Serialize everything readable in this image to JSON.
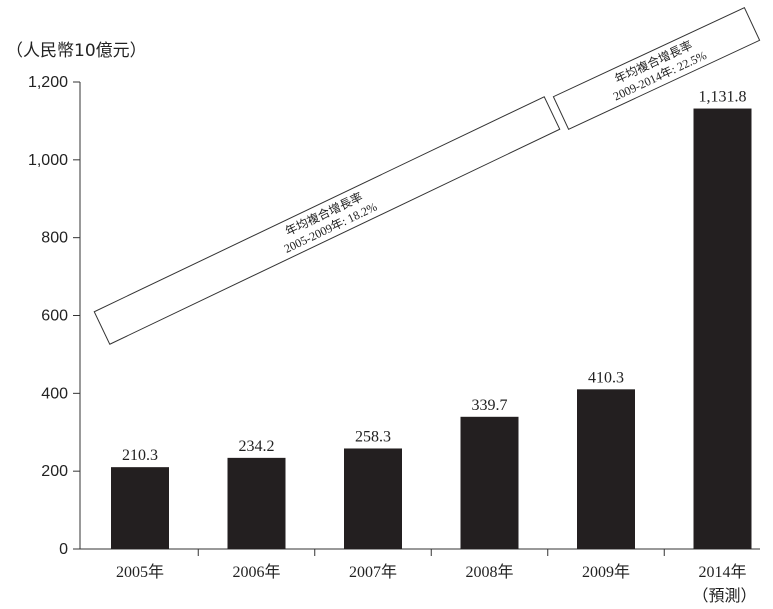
{
  "chart_data": {
    "type": "bar",
    "ylabel": "（人民幣10億元）",
    "categories": [
      "2005年",
      "2006年",
      "2007年",
      "2008年",
      "2009年",
      "2014年"
    ],
    "category_sublabels": [
      "",
      "",
      "",
      "",
      "",
      "（預測）"
    ],
    "values": [
      210.3,
      234.2,
      258.3,
      339.7,
      410.3,
      1131.8
    ],
    "data_labels": [
      "210.3",
      "234.2",
      "258.3",
      "339.7",
      "410.3",
      "1,131.8"
    ],
    "ylim": [
      0,
      1200
    ],
    "yticks": [
      0,
      200,
      400,
      600,
      800,
      1000,
      1200
    ],
    "ytick_labels": [
      "0",
      "200",
      "400",
      "600",
      "800",
      "1,000",
      "1,200"
    ],
    "bar_color": "#231f20",
    "annotations": [
      {
        "line1": "年均複合增長率",
        "line2": "2005-2009年: 18.2%",
        "from_category": "2005年",
        "to_category": "2009年"
      },
      {
        "line1": "年均複合增長率",
        "line2": "2009-2014年: 22.5%",
        "from_category": "2009年",
        "to_category": "2014年"
      }
    ]
  }
}
